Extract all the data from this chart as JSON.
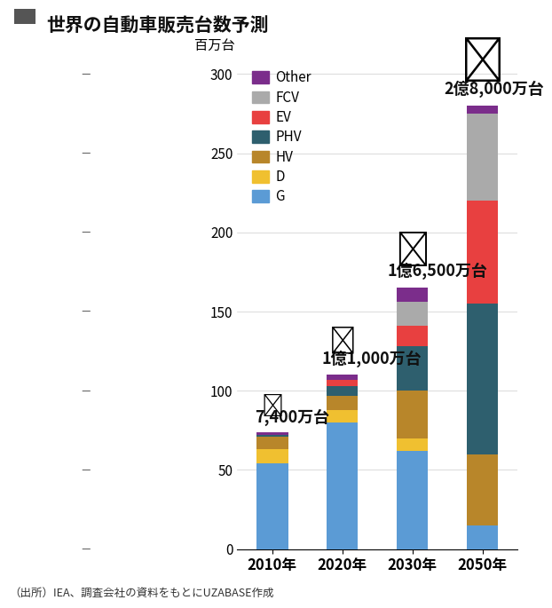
{
  "title": "世界の自動車販売台数予測",
  "ylabel": "百万台",
  "source": "（出所）IEA、調査会社の資料をもとにUZABASE作成",
  "categories": [
    "2010年",
    "2020年",
    "2030年",
    "2050年"
  ],
  "totals_label": [
    "7,400万台",
    "1億1,000万台",
    "1億6,500万台",
    "2億8,000万台"
  ],
  "segments": [
    "G",
    "D",
    "HV",
    "PHV",
    "EV",
    "FCV",
    "Other"
  ],
  "colors": [
    "#5b9bd5",
    "#f0c030",
    "#b8862a",
    "#2e5f6e",
    "#e84040",
    "#aaaaaa",
    "#7b2d8b"
  ],
  "data": {
    "G": [
      54,
      80,
      62,
      15
    ],
    "D": [
      9,
      8,
      8,
      0
    ],
    "HV": [
      8,
      9,
      30,
      45
    ],
    "PHV": [
      1,
      6,
      28,
      95
    ],
    "EV": [
      0,
      4,
      13,
      65
    ],
    "FCV": [
      0,
      0,
      15,
      55
    ],
    "Other": [
      2,
      3,
      9,
      5
    ]
  },
  "ylim": [
    0,
    310
  ],
  "yticks": [
    0,
    50,
    100,
    150,
    200,
    250,
    300
  ],
  "bar_width": 0.45,
  "background_color": "#ffffff",
  "title_color": "#111111",
  "title_fontsize": 15,
  "legend_fontsize": 11,
  "tick_fontsize": 11,
  "source_fontsize": 9,
  "total_label_fontsize": 13
}
